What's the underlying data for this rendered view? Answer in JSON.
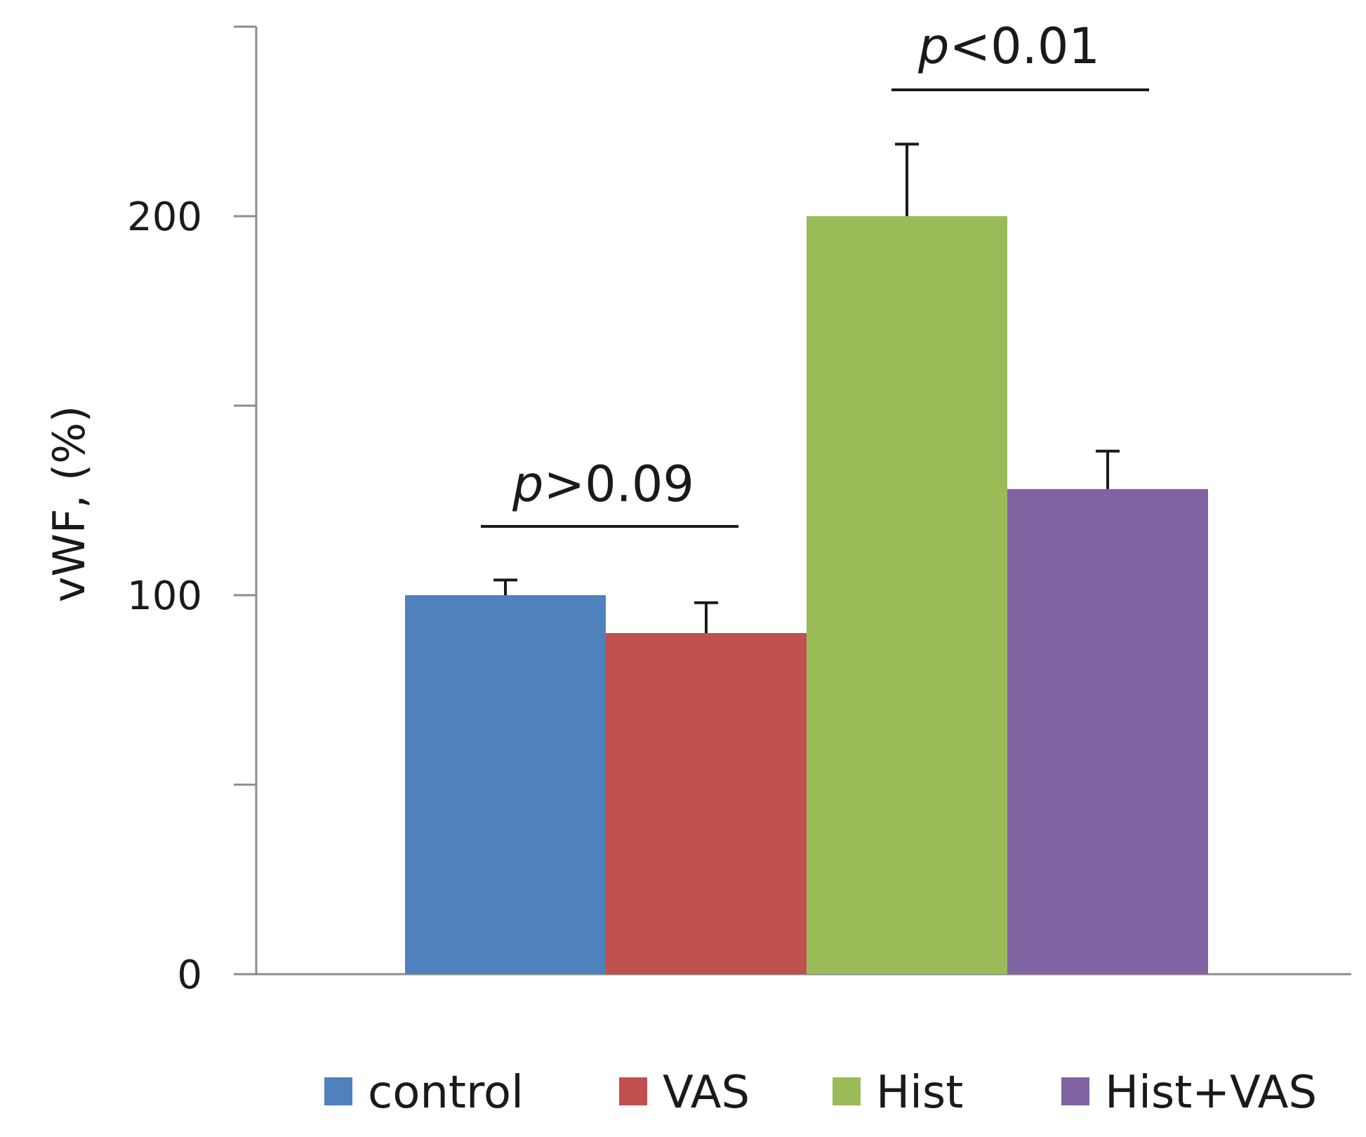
{
  "chart_data": {
    "type": "bar",
    "title": "",
    "xlabel": "",
    "ylabel": "vWF, (%)",
    "ylim": [
      0,
      250
    ],
    "yticks": [
      0,
      50,
      100,
      150,
      200,
      250
    ],
    "ytick_labels": [
      "0",
      "",
      "100",
      "",
      "200",
      ""
    ],
    "grid": false,
    "legend_position": "bottom",
    "series": [
      {
        "name": "control",
        "value": 100,
        "error": 4,
        "color": "#4F81BD"
      },
      {
        "name": "VAS",
        "value": 90,
        "error": 8,
        "color": "#C0504D"
      },
      {
        "name": "Hist",
        "value": 200,
        "error": 19,
        "color": "#9BBB59"
      },
      {
        "name": "Hist+VAS",
        "value": 128,
        "error": 10,
        "color": "#8064A2"
      }
    ],
    "annotations": [
      {
        "p": "p",
        "op": ">0.09",
        "from": "control",
        "to": "VAS"
      },
      {
        "p": "p",
        "op": "<0.01",
        "from": "Hist",
        "to": "Hist+VAS"
      }
    ]
  }
}
